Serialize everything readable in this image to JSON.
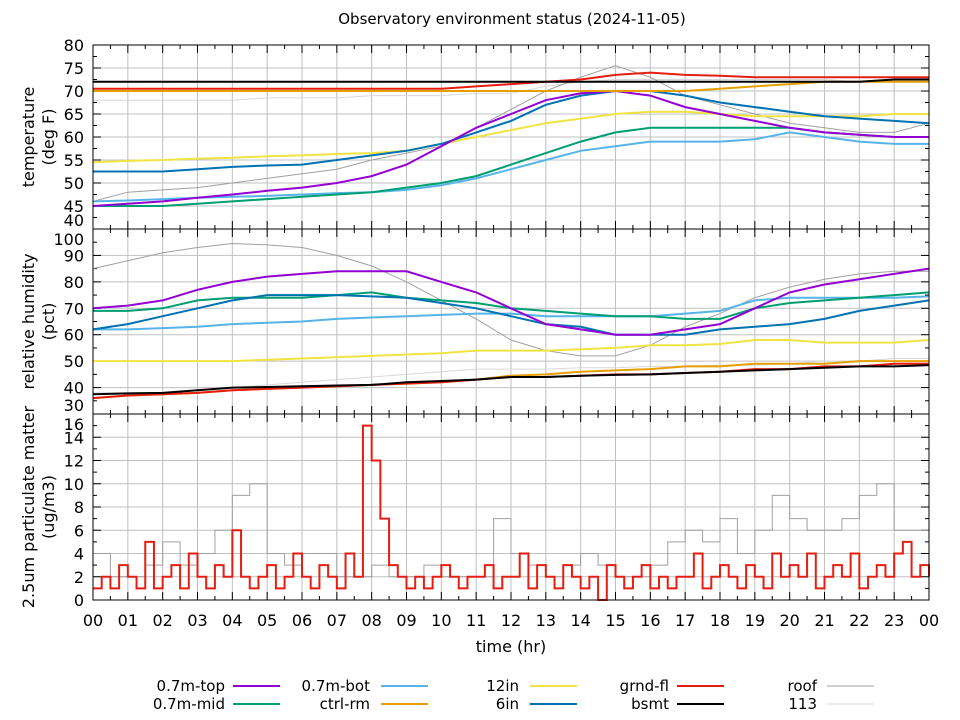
{
  "title": "Observatory environment status (2024-11-05)",
  "xaxis": {
    "label": "time (hr)",
    "ticks": [
      "00",
      "01",
      "02",
      "03",
      "04",
      "05",
      "06",
      "07",
      "08",
      "09",
      "10",
      "11",
      "12",
      "13",
      "14",
      "15",
      "16",
      "17",
      "18",
      "19",
      "20",
      "21",
      "22",
      "23",
      "00"
    ],
    "range": [
      0,
      24
    ],
    "grid": true
  },
  "legend": {
    "placement": "bottom",
    "items": [
      {
        "name": "0.7m-top",
        "color": "#9400d3"
      },
      {
        "name": "0.7m-mid",
        "color": "#009e73"
      },
      {
        "name": "0.7m-bot",
        "color": "#56b4e9"
      },
      {
        "name": "ctrl-rm",
        "color": "#e69f00"
      },
      {
        "name": "12in",
        "color": "#f0e442"
      },
      {
        "name": "6in",
        "color": "#0072b2"
      },
      {
        "name": "grnd-fl",
        "color": "#e51e10"
      },
      {
        "name": "bsmt",
        "color": "#000000"
      },
      {
        "name": "roof",
        "color": "#a0a0a0"
      },
      {
        "name": "113",
        "color": "#d8d8d8"
      }
    ]
  },
  "chart_data": [
    {
      "type": "line",
      "ylabel": [
        "temperature",
        "(deg F)"
      ],
      "ylim": [
        40,
        80
      ],
      "yticks": [
        40,
        45,
        50,
        55,
        60,
        65,
        70,
        75,
        80
      ],
      "grid": true,
      "x": [
        0,
        1,
        2,
        3,
        4,
        5,
        6,
        7,
        8,
        9,
        10,
        11,
        12,
        13,
        14,
        15,
        16,
        17,
        18,
        19,
        20,
        21,
        22,
        23,
        24
      ],
      "series": [
        {
          "name": "113",
          "values": [
            68,
            68,
            68,
            68,
            68,
            68.5,
            68.5,
            68.5,
            69,
            69,
            69,
            69.5,
            69.5,
            71,
            72,
            72.5,
            72.5,
            72.5,
            72.5,
            72.5,
            72.5,
            72.5,
            72,
            72,
            72
          ]
        },
        {
          "name": "roof",
          "values": [
            46,
            48,
            48.5,
            49,
            50,
            51,
            52,
            53,
            55,
            56.5,
            58,
            62,
            66,
            70,
            73,
            75.5,
            73,
            69,
            67,
            65,
            63,
            62,
            61,
            61,
            63
          ]
        },
        {
          "name": "0.7m-bot",
          "values": [
            46,
            46.2,
            46.5,
            46.8,
            47,
            47.2,
            47.5,
            47.8,
            48,
            48.5,
            49.5,
            51,
            53,
            55,
            57,
            58,
            59,
            59,
            59,
            59.5,
            61,
            60,
            59,
            58.5,
            58.5
          ]
        },
        {
          "name": "0.7m-mid",
          "values": [
            45,
            45,
            45,
            45.5,
            46,
            46.5,
            47,
            47.5,
            48,
            49,
            50,
            51.5,
            54,
            56.5,
            59,
            61,
            62,
            62,
            62,
            62,
            62,
            61,
            60.5,
            60,
            60
          ]
        },
        {
          "name": "12in",
          "values": [
            54.5,
            54.8,
            55,
            55.3,
            55.5,
            55.8,
            56,
            56.3,
            56.5,
            57,
            58.5,
            60,
            61.5,
            63,
            64,
            65,
            65.5,
            65.5,
            65,
            64.5,
            64.5,
            64.5,
            64.5,
            65,
            65
          ]
        },
        {
          "name": "6in",
          "values": [
            52.5,
            52.5,
            52.5,
            53,
            53.5,
            53.8,
            54,
            55,
            56,
            57,
            58.5,
            61,
            63.5,
            67,
            69,
            70,
            70,
            69,
            67.5,
            66.5,
            65.5,
            64.5,
            64,
            63.5,
            63
          ]
        },
        {
          "name": "0.7m-top",
          "values": [
            45,
            45.5,
            46,
            46.8,
            47.5,
            48.3,
            49,
            50,
            51.5,
            54,
            58,
            62,
            65,
            68,
            69.5,
            70,
            69,
            66.5,
            65,
            63.5,
            62,
            61,
            60.5,
            60,
            60
          ]
        },
        {
          "name": "ctrl-rm",
          "values": [
            70,
            70,
            70,
            70,
            70,
            70,
            70,
            70,
            70,
            70,
            70,
            70,
            70,
            70,
            70,
            70,
            70,
            70,
            70.5,
            71,
            71.5,
            72,
            72,
            72,
            72
          ]
        },
        {
          "name": "grnd-fl",
          "values": [
            70.5,
            70.5,
            70.5,
            70.5,
            70.5,
            70.5,
            70.5,
            70.5,
            70.5,
            70.5,
            70.5,
            71,
            71.5,
            72,
            72.5,
            73.5,
            74,
            73.5,
            73.3,
            73,
            73,
            73,
            73,
            73,
            73
          ]
        },
        {
          "name": "bsmt",
          "values": [
            72,
            72,
            72,
            72,
            72,
            72,
            72,
            72,
            72,
            72,
            72,
            72,
            72,
            72,
            72,
            72,
            72,
            72,
            72,
            72,
            72,
            72,
            72,
            72.5,
            72.5
          ]
        }
      ]
    },
    {
      "type": "line",
      "ylabel": [
        "relative humidity",
        "(pct)"
      ],
      "ylim": [
        30,
        100
      ],
      "yticks": [
        30,
        40,
        50,
        60,
        70,
        80,
        90,
        100
      ],
      "grid": true,
      "x": [
        0,
        1,
        2,
        3,
        4,
        5,
        6,
        7,
        8,
        9,
        10,
        11,
        12,
        13,
        14,
        15,
        16,
        17,
        18,
        19,
        20,
        21,
        22,
        23,
        24
      ],
      "series": [
        {
          "name": "113",
          "values": [
            38,
            38,
            38,
            39,
            40,
            41,
            42,
            43,
            44,
            45,
            46,
            47,
            47,
            47,
            47.5,
            47.5,
            48,
            48,
            48.5,
            48.5,
            49,
            50,
            50,
            51,
            51
          ]
        },
        {
          "name": "roof",
          "values": [
            85,
            88,
            91,
            93,
            94.5,
            94,
            93,
            90,
            86,
            80,
            73,
            66,
            58,
            54,
            52,
            52,
            56,
            63,
            68,
            74,
            78,
            81,
            83,
            84,
            84
          ]
        },
        {
          "name": "0.7m-bot",
          "values": [
            62,
            62,
            62.5,
            63,
            64,
            64.5,
            65,
            66,
            66.5,
            67,
            67.5,
            68,
            68,
            67,
            67,
            67,
            67,
            68,
            69,
            73,
            74,
            74,
            74,
            74,
            74.5
          ]
        },
        {
          "name": "0.7m-mid",
          "values": [
            69,
            69,
            70,
            73,
            74,
            74,
            74,
            75,
            76,
            74,
            73,
            72,
            70,
            69,
            68,
            67,
            67,
            66,
            66,
            70,
            72,
            73,
            74,
            75,
            76
          ]
        },
        {
          "name": "12in",
          "values": [
            50,
            50,
            50,
            50,
            50,
            50.5,
            51,
            51.5,
            52,
            52.5,
            53,
            54,
            54,
            54,
            54.5,
            55,
            56,
            56,
            56.5,
            58,
            58,
            57,
            57,
            57,
            58
          ]
        },
        {
          "name": "6in",
          "values": [
            62,
            64,
            67,
            70,
            73,
            75,
            75,
            75,
            74.5,
            74,
            72,
            70,
            67,
            64,
            63,
            60,
            60,
            60,
            62,
            63,
            64,
            66,
            69,
            71,
            73
          ]
        },
        {
          "name": "0.7m-top",
          "values": [
            70,
            71,
            73,
            77,
            80,
            82,
            83,
            84,
            84,
            84,
            80,
            76,
            70,
            64,
            62,
            60,
            60,
            62,
            64,
            70,
            76,
            79,
            81,
            83,
            85
          ]
        },
        {
          "name": "ctrl-rm",
          "values": [
            36,
            37,
            37.5,
            38,
            39,
            39.5,
            40,
            40.5,
            41,
            41.5,
            42,
            43,
            44.5,
            45,
            46,
            46.5,
            47,
            48,
            48,
            49,
            49,
            49,
            50,
            50,
            50
          ]
        },
        {
          "name": "grnd-fl",
          "values": [
            36,
            37,
            37.5,
            38,
            39,
            39.5,
            40,
            40.5,
            41,
            41.5,
            42,
            43,
            44,
            44,
            44.5,
            45,
            45,
            45.5,
            46,
            47,
            47,
            48,
            48,
            49,
            49
          ]
        },
        {
          "name": "bsmt",
          "values": [
            37.5,
            37.8,
            38,
            39,
            40,
            40.2,
            40.5,
            40.8,
            41,
            42,
            42.5,
            43,
            44,
            44,
            44.5,
            44.8,
            45,
            45.5,
            46,
            46.5,
            47,
            47.5,
            48,
            48,
            48.5
          ]
        }
      ]
    },
    {
      "type": "line",
      "ylabel": [
        "2.5um particulate matter",
        "(ug/m3)"
      ],
      "ylim": [
        0,
        16
      ],
      "yticks": [
        0,
        2,
        4,
        6,
        8,
        10,
        12,
        14,
        16
      ],
      "grid": true,
      "series": [
        {
          "name": "roof",
          "x_step": 0.5,
          "values": [
            4,
            2,
            2,
            3,
            5,
            3,
            4,
            6,
            9,
            10,
            4,
            3,
            4,
            4,
            2,
            2,
            3,
            2,
            2,
            3,
            2,
            2,
            2,
            7,
            4,
            3,
            2,
            3,
            4,
            3,
            2,
            2,
            3,
            5,
            6,
            5,
            7,
            4,
            6,
            9,
            7,
            6,
            6,
            7,
            9,
            10,
            6,
            6,
            8
          ]
        },
        {
          "name": "grnd-fl",
          "x_step": 0.25,
          "values": [
            1,
            2,
            1,
            3,
            2,
            1,
            5,
            1,
            2,
            3,
            1,
            4,
            2,
            1,
            3,
            2,
            6,
            2,
            1,
            2,
            3,
            1,
            2,
            4,
            2,
            1,
            3,
            2,
            1,
            4,
            2,
            15,
            12,
            7,
            3,
            2,
            1,
            2,
            1,
            2,
            3,
            2,
            1,
            2,
            2,
            3,
            1,
            2,
            2,
            4,
            1,
            3,
            2,
            1,
            3,
            2,
            1,
            2,
            0,
            3,
            2,
            1,
            2,
            3,
            1,
            2,
            1,
            2,
            2,
            4,
            1,
            2,
            3,
            2,
            1,
            3,
            2,
            1,
            4,
            2,
            3,
            2,
            4,
            1,
            2,
            3,
            2,
            4,
            1,
            2,
            3,
            2,
            4,
            5,
            2,
            3,
            2
          ]
        }
      ]
    }
  ]
}
